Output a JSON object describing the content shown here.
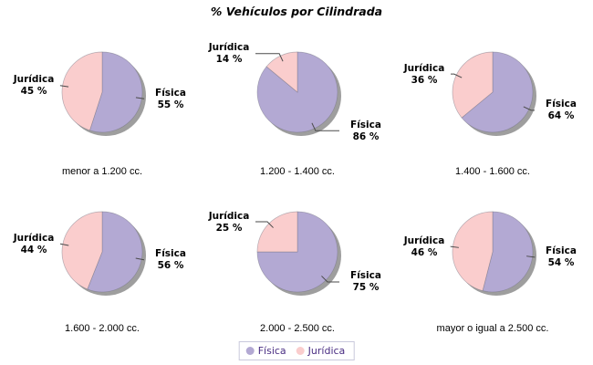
{
  "chart_data": {
    "type": "pie",
    "title": "% Vehículos por Cilindrada",
    "legend_position": "bottom",
    "series_names": [
      "Física",
      "Jurídica"
    ],
    "colors": {
      "Física": "#B3A9D3",
      "Jurídica": "#FACDCD"
    },
    "shadow_color": "#9E9E9E",
    "pies": [
      {
        "category": "menor a 1.200 cc.",
        "slices": [
          {
            "name": "Física",
            "pct": 55,
            "display": "55 %"
          },
          {
            "name": "Jurídica",
            "pct": 45,
            "display": "45 %"
          }
        ]
      },
      {
        "category": "1.200 - 1.400 cc.",
        "slices": [
          {
            "name": "Física",
            "pct": 86,
            "display": "86 %"
          },
          {
            "name": "Jurídica",
            "pct": 14,
            "display": "14 %"
          }
        ]
      },
      {
        "category": "1.400 - 1.600 cc.",
        "slices": [
          {
            "name": "Física",
            "pct": 64,
            "display": "64 %"
          },
          {
            "name": "Jurídica",
            "pct": 36,
            "display": "36 %"
          }
        ]
      },
      {
        "category": "1.600 - 2.000 cc.",
        "slices": [
          {
            "name": "Física",
            "pct": 56,
            "display": "56 %"
          },
          {
            "name": "Jurídica",
            "pct": 44,
            "display": "44 %"
          }
        ]
      },
      {
        "category": "2.000 - 2.500 cc.",
        "slices": [
          {
            "name": "Física",
            "pct": 75,
            "display": "75 %"
          },
          {
            "name": "Jurídica",
            "pct": 25,
            "display": "25 %"
          }
        ]
      },
      {
        "category": "mayor o igual a 2.500 cc.",
        "slices": [
          {
            "name": "Física",
            "pct": 54,
            "display": "54 %"
          },
          {
            "name": "Jurídica",
            "pct": 46,
            "display": "46 %"
          }
        ]
      }
    ]
  },
  "legend": {
    "items": [
      {
        "label": "Física",
        "color": "#B3A9D3"
      },
      {
        "label": "Jurídica",
        "color": "#FACDCD"
      }
    ]
  }
}
